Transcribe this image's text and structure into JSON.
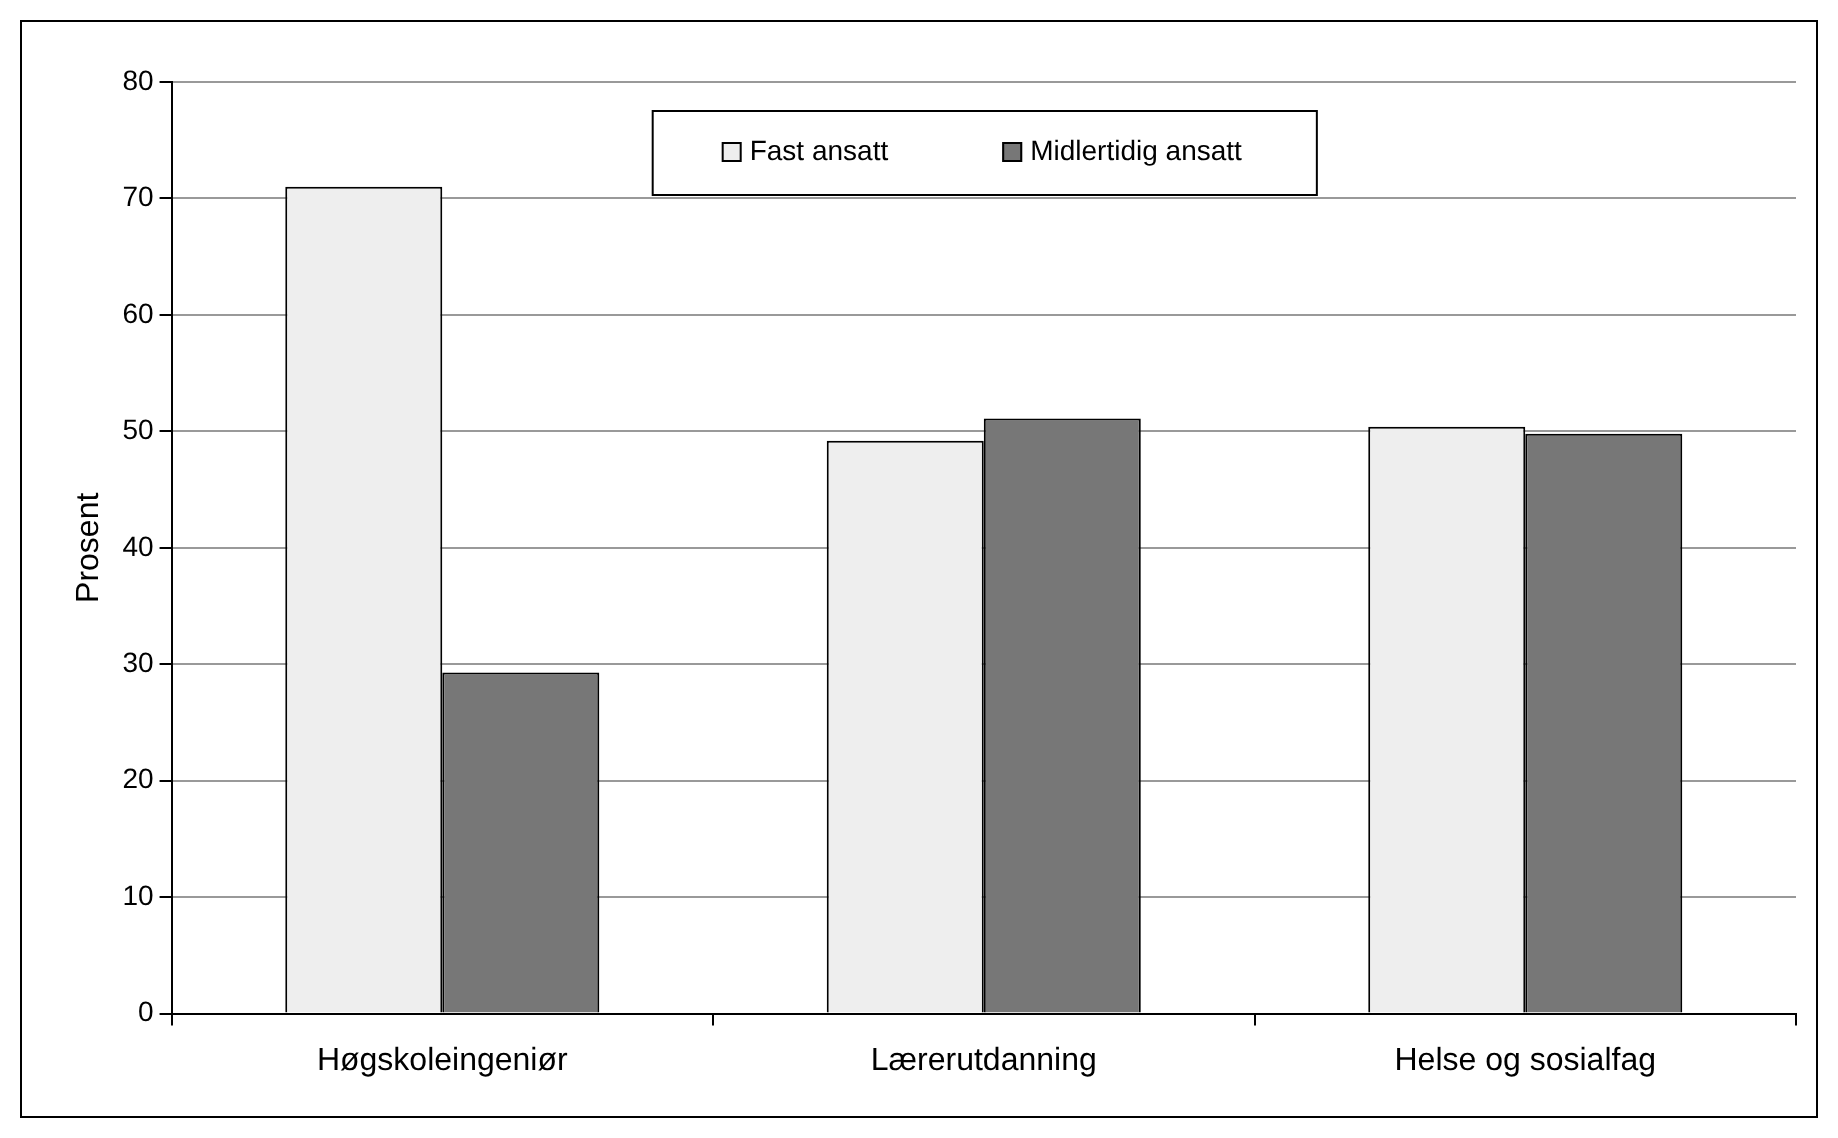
{
  "chart_data": {
    "type": "bar",
    "ylabel": "Prosent",
    "categories": [
      "Høgskoleingeniør",
      "Lærerutdanning",
      "Helse og sosialfag"
    ],
    "series": [
      {
        "name": "Fast ansatt",
        "color": "#eeeeee",
        "values": [
          71,
          49.2,
          50.4
        ]
      },
      {
        "name": "Midlertidig ansatt",
        "color": "#777777",
        "values": [
          29.3,
          51.1,
          49.8
        ]
      }
    ],
    "ylim": [
      0,
      80
    ],
    "yticks": [
      0,
      10,
      20,
      30,
      40,
      50,
      60,
      70,
      80
    ],
    "grid": "y",
    "legend": "top"
  }
}
